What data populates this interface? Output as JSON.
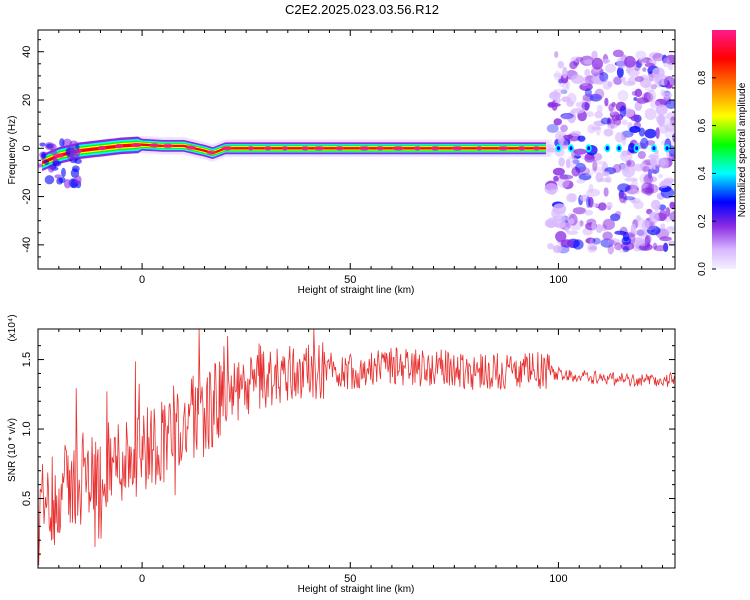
{
  "title": "C2E2.2025.023.03.56.R12",
  "chart_data": [
    {
      "type": "heatmap",
      "xlabel": "Height of straight line (km)",
      "ylabel": "Frequency (Hz)",
      "xlim": [
        -25,
        128
      ],
      "ylim": [
        -50,
        49
      ],
      "xticks": [
        0,
        50,
        100
      ],
      "xtick_labels": [
        "0",
        "50",
        "100"
      ],
      "yticks": [
        -40,
        -20,
        0,
        20,
        40
      ],
      "ytick_labels": [
        "-40",
        "-20",
        "0",
        "20",
        "40"
      ],
      "grid": false,
      "colorbar": {
        "label": "Normalized spectral amplitude",
        "range": [
          0,
          1
        ],
        "ticks": [
          0.0,
          0.2,
          0.4,
          0.6,
          0.8
        ],
        "tick_labels": [
          "0.0",
          "0.2",
          "0.4",
          "0.6",
          "0.8"
        ],
        "colormap": [
          "#f0f0ff",
          "#d8b8ff",
          "#8a2be2",
          "#0000ff",
          "#00ffff",
          "#00ff00",
          "#ffff00",
          "#ff8000",
          "#ff0000",
          "#ff1a8c"
        ]
      },
      "ridge": {
        "description_points": [
          [
            -24,
            -6
          ],
          [
            -20,
            -3
          ],
          [
            -15,
            -1
          ],
          [
            -10,
            0
          ],
          [
            -5,
            1
          ],
          [
            0,
            1.5
          ],
          [
            5,
            1
          ],
          [
            10,
            1
          ],
          [
            15,
            -1
          ],
          [
            17,
            -2
          ],
          [
            20,
            0
          ],
          [
            30,
            0
          ],
          [
            50,
            0
          ],
          [
            75,
            0
          ],
          [
            97,
            0
          ]
        ],
        "noise_region_x": [
          98,
          128
        ],
        "noise_region_y": [
          -42,
          40
        ]
      }
    },
    {
      "type": "line",
      "xlabel": "Height of straight line (km)",
      "ylabel": "SNR (10 * v/v)",
      "scale_label": "(x10⁴)",
      "xlim": [
        -25,
        128
      ],
      "ylim": [
        0.0,
        1.72
      ],
      "xticks": [
        0,
        50,
        100
      ],
      "xtick_labels": [
        "0",
        "50",
        "100"
      ],
      "yticks": [
        0.5,
        1.0,
        1.5
      ],
      "ytick_labels": [
        "0.5",
        "1.0",
        "1.5"
      ],
      "grid": false,
      "color": "#e83030",
      "series": [
        {
          "x": [
            -25,
            -20,
            -15,
            -10,
            -5,
            0,
            5,
            10,
            15,
            20,
            25,
            30,
            35,
            40,
            45,
            50,
            55,
            60,
            65,
            70,
            75,
            80,
            85,
            90,
            95,
            100,
            105,
            110,
            115,
            120,
            125,
            128
          ],
          "values": [
            0.45,
            0.55,
            0.62,
            0.7,
            0.78,
            0.85,
            0.93,
            1.02,
            1.12,
            1.22,
            1.3,
            1.36,
            1.4,
            1.42,
            1.43,
            1.42,
            1.44,
            1.45,
            1.45,
            1.44,
            1.43,
            1.42,
            1.42,
            1.41,
            1.42,
            1.4,
            1.38,
            1.37,
            1.36,
            1.35,
            1.35,
            1.36
          ]
        }
      ]
    }
  ]
}
